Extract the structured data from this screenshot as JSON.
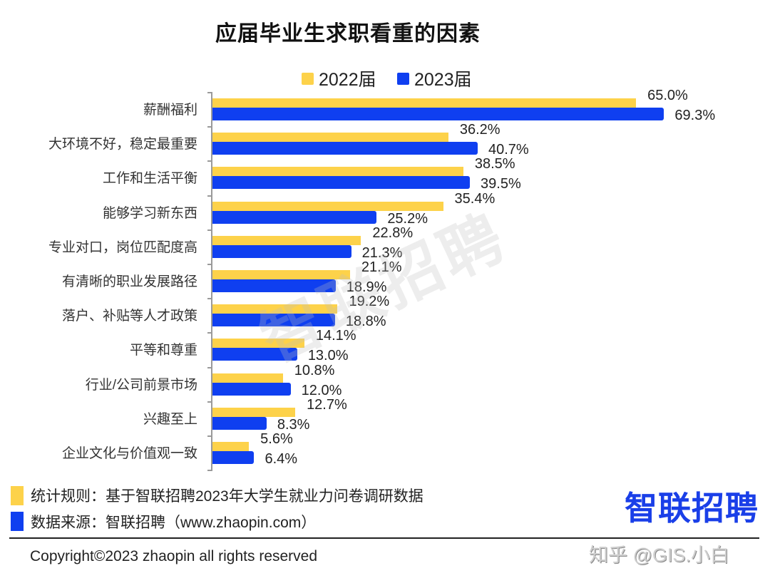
{
  "title": "应届毕业生求职看重的因素",
  "legend": [
    {
      "label": "2022届",
      "color": "#FDD24A"
    },
    {
      "label": "2023届",
      "color": "#0F3FF0"
    }
  ],
  "chart_data": {
    "type": "bar",
    "orientation": "horizontal",
    "title": "应届毕业生求职看重的因素",
    "xlabel": "",
    "ylabel": "",
    "grid": false,
    "legend_position": "top",
    "value_suffix": "%",
    "categories": [
      "薪酬福利",
      "大环境不好，稳定最重要",
      "工作和生活平衡",
      "能够学习新东西",
      "专业对口，岗位匹配度高",
      "有清晰的职业发展路径",
      "落户、补贴等人才政策",
      "平等和尊重",
      "行业/公司前景市场",
      "兴趣至上",
      "企业文化与价值观一致"
    ],
    "series": [
      {
        "name": "2022届",
        "color": "#FDD24A",
        "values": [
          65.0,
          36.2,
          38.5,
          35.4,
          22.8,
          21.1,
          19.2,
          14.1,
          10.8,
          12.7,
          5.6
        ]
      },
      {
        "name": "2023届",
        "color": "#0F3FF0",
        "values": [
          69.3,
          40.7,
          39.5,
          25.2,
          21.3,
          18.9,
          18.8,
          13.0,
          12.0,
          8.3,
          6.4
        ]
      }
    ]
  },
  "notes": [
    {
      "text": "统计规则：基于智联招聘2023年大学生就业力问卷调研数据",
      "color": "#FDD24A"
    },
    {
      "text": "数据来源：智联招聘（www.zhaopin.com）",
      "color": "#0F3FF0"
    }
  ],
  "copyright": "Copyright©2023 zhaopin all rights reserved",
  "brand": {
    "logo_text": "智联招聘",
    "color": "#1A3FE8"
  },
  "watermark": "智联招聘",
  "credit": "知乎 @GIS.小白"
}
